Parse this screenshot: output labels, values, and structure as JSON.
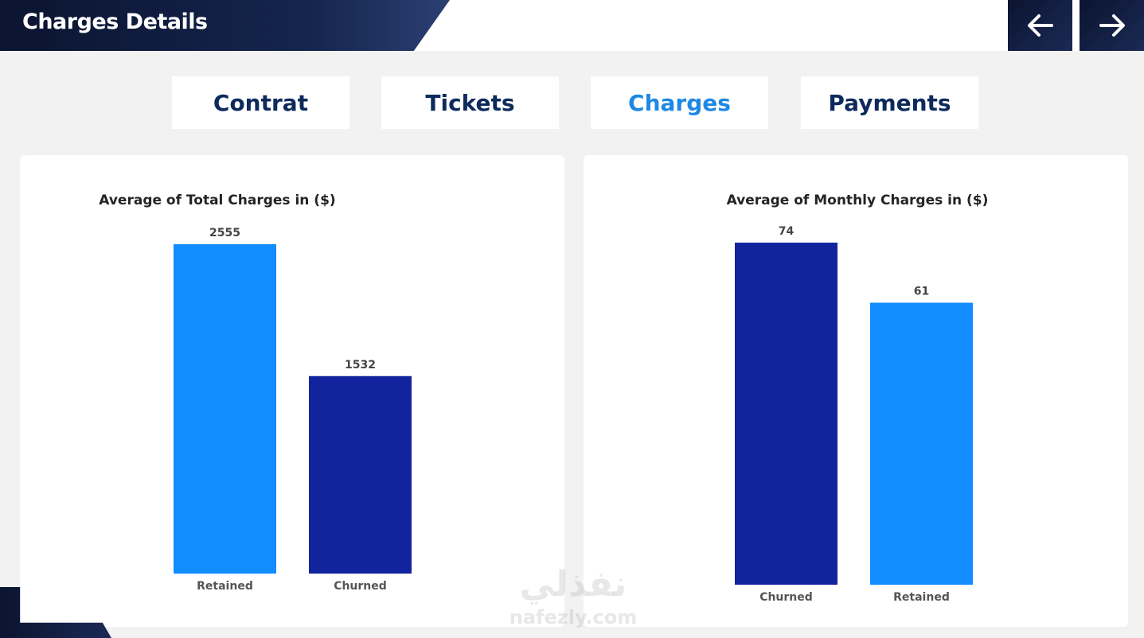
{
  "header": {
    "title": "Charges Details"
  },
  "nav": {
    "back_icon": "arrow-left-icon",
    "next_icon": "arrow-right-icon"
  },
  "tabs": [
    {
      "label": "Contrat",
      "active": false
    },
    {
      "label": "Tickets",
      "active": false
    },
    {
      "label": "Charges",
      "active": true
    },
    {
      "label": "Payments",
      "active": false
    }
  ],
  "colors": {
    "header_dark": "#0b1430",
    "tab_text": "#0e2a5c",
    "tab_active": "#1e88e5",
    "bar_light": "#118dff",
    "bar_dark": "#12239e"
  },
  "chart_data": [
    {
      "type": "bar",
      "title": "Average of Total Charges in ($)",
      "categories": [
        "Retained",
        "Churned"
      ],
      "values": [
        2555,
        1532
      ],
      "labels": [
        "2555",
        "1532"
      ],
      "colors": [
        "#118dff",
        "#12239e"
      ],
      "ylim": [
        0,
        2555
      ],
      "grid": false
    },
    {
      "type": "bar",
      "title": "Average of Monthly Charges in ($)",
      "categories": [
        "Churned",
        "Retained"
      ],
      "values": [
        74,
        61
      ],
      "labels": [
        "74",
        "61"
      ],
      "colors": [
        "#12239e",
        "#118dff"
      ],
      "ylim": [
        0,
        74
      ],
      "grid": false
    }
  ],
  "watermark": {
    "arabic": "نفذلي",
    "latin": "nafezly.com"
  }
}
